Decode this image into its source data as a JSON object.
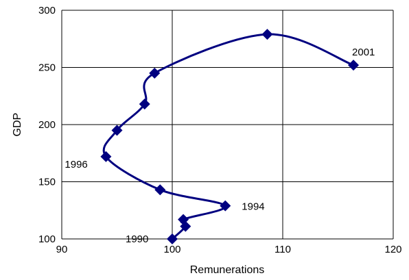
{
  "chart_data": {
    "type": "scatter",
    "title": "",
    "xlabel": "Remunerations",
    "ylabel": "GDP",
    "xlim": [
      90,
      120
    ],
    "ylim": [
      100,
      300
    ],
    "xticks": [
      90,
      100,
      110,
      120
    ],
    "yticks": [
      100,
      150,
      200,
      250,
      300
    ],
    "grid": true,
    "legend": "none",
    "series": [
      {
        "color": "#000080",
        "marker": "diamond",
        "line": "smooth",
        "points": [
          {
            "label": "1990",
            "x": 100.0,
            "y": 100
          },
          {
            "label": "",
            "x": 101.2,
            "y": 111
          },
          {
            "label": "",
            "x": 101.0,
            "y": 117
          },
          {
            "label": "1994",
            "x": 104.8,
            "y": 129
          },
          {
            "label": "",
            "x": 98.9,
            "y": 143
          },
          {
            "label": "1996",
            "x": 94.0,
            "y": 172
          },
          {
            "label": "",
            "x": 95.0,
            "y": 195
          },
          {
            "label": "",
            "x": 97.5,
            "y": 218
          },
          {
            "label": "",
            "x": 98.4,
            "y": 245
          },
          {
            "label": "",
            "x": 108.6,
            "y": 279
          },
          {
            "label": "2001",
            "x": 116.4,
            "y": 252
          }
        ]
      }
    ]
  }
}
